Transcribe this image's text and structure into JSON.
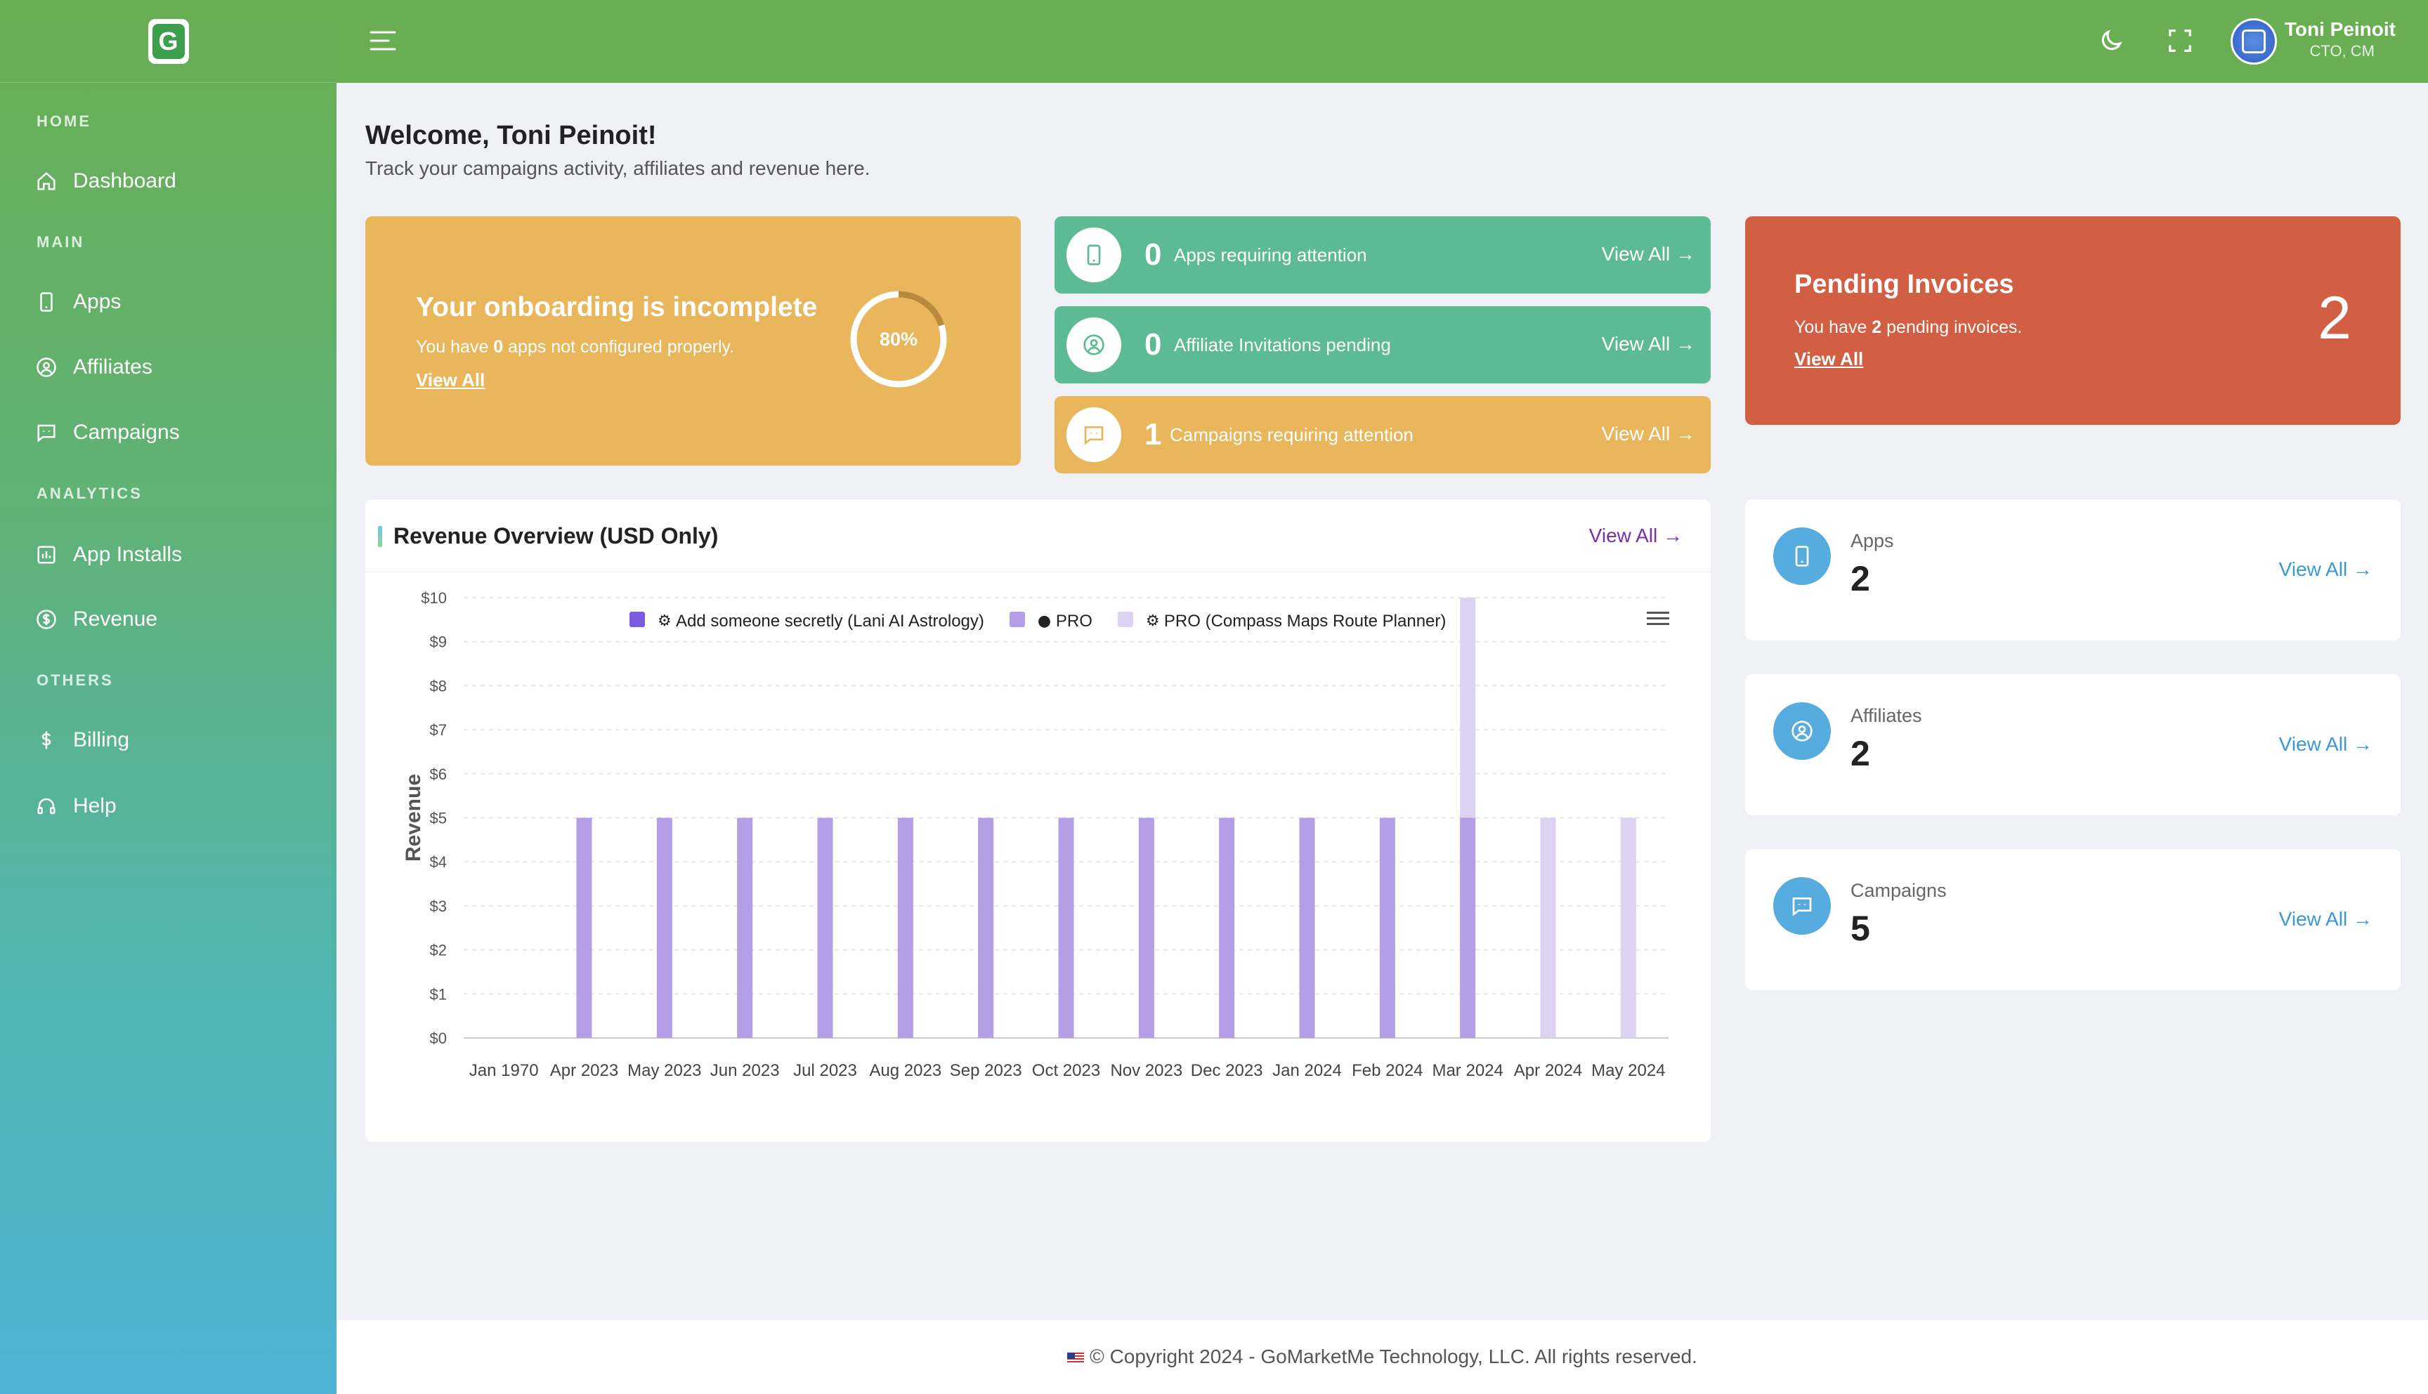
{
  "sidebar": {
    "sections": {
      "home": "HOME",
      "main": "MAIN",
      "analytics": "ANALYTICS",
      "others": "OTHERS"
    },
    "items": [
      {
        "label": "Dashboard",
        "icon": "home-icon"
      },
      {
        "label": "Apps",
        "icon": "phone-icon"
      },
      {
        "label": "Affiliates",
        "icon": "user-circle-icon"
      },
      {
        "label": "Campaigns",
        "icon": "message-icon"
      },
      {
        "label": "App Installs",
        "icon": "bar-chart-icon"
      },
      {
        "label": "Revenue",
        "icon": "dollar-circle-icon"
      },
      {
        "label": "Billing",
        "icon": "dollar-icon"
      },
      {
        "label": "Help",
        "icon": "headset-icon"
      }
    ]
  },
  "topbar": {
    "user_name": "Toni Peinoit",
    "user_role": "CTO, CM"
  },
  "welcome": {
    "title": "Welcome, Toni Peinoit!",
    "subtitle": "Track your campaigns activity, affiliates and revenue here."
  },
  "onboarding": {
    "title": "Your onboarding is incomplete",
    "text_pre": "You have ",
    "count": "0",
    "text_post": " apps not configured properly.",
    "link": "View All",
    "progress_label": "80%",
    "progress": 0.8
  },
  "attention": [
    {
      "count": "0",
      "label": "Apps requiring attention",
      "link": "View All"
    },
    {
      "count": "0",
      "label": "Affiliate Invitations pending",
      "link": "View All"
    },
    {
      "count": "1",
      "label": "Campaigns requiring attention",
      "link": "View All"
    }
  ],
  "invoices": {
    "title": "Pending Invoices",
    "text_pre": "You have ",
    "count": "2",
    "text_post": " pending invoices.",
    "link": "View All",
    "big": "2"
  },
  "revenue": {
    "title": "Revenue Overview (USD Only)",
    "link": "View All"
  },
  "stats": [
    {
      "label": "Apps",
      "value": "2",
      "link": "View All"
    },
    {
      "label": "Affiliates",
      "value": "2",
      "link": "View All"
    },
    {
      "label": "Campaigns",
      "value": "5",
      "link": "View All"
    }
  ],
  "footer": {
    "text": "© Copyright 2024 - GoMarketMe Technology, LLC. All rights reserved."
  },
  "colors": {
    "green": "#69ae52",
    "teal": "#5cbb93",
    "yellow": "#eab65b",
    "red": "#d25f44",
    "blue": "#56abdf",
    "purple": "#7b2ea6"
  },
  "chart_data": {
    "type": "bar",
    "ylabel": "Revenue",
    "ylim": [
      0,
      10
    ],
    "yticks": [
      "$0",
      "$1",
      "$2",
      "$3",
      "$4",
      "$5",
      "$6",
      "$7",
      "$8",
      "$9",
      "$10"
    ],
    "stacked": true,
    "legend_position": "top",
    "categories": [
      "Jan 1970",
      "Apr 2023",
      "May 2023",
      "Jun 2023",
      "Jul 2023",
      "Aug 2023",
      "Sep 2023",
      "Oct 2023",
      "Nov 2023",
      "Dec 2023",
      "Jan 2024",
      "Feb 2024",
      "Mar 2024",
      "Apr 2024",
      "May 2024"
    ],
    "series": [
      {
        "name": "Add someone secretly (Lani AI Astrology)",
        "platform_icon": "android-icon",
        "color": "#7b5be0",
        "values": [
          0,
          0,
          0,
          0,
          0,
          0,
          0,
          0,
          0,
          0,
          0,
          0,
          0,
          0,
          0
        ]
      },
      {
        "name": "PRO",
        "platform_icon": "apple-icon",
        "color": "#b49ee6",
        "values": [
          0,
          5,
          5,
          5,
          5,
          5,
          5,
          5,
          5,
          5,
          5,
          5,
          5,
          0,
          0
        ]
      },
      {
        "name": "PRO (Compass Maps Route Planner)",
        "platform_icon": "android-icon",
        "color": "#dcd2f2",
        "values": [
          0,
          0,
          0,
          0,
          0,
          0,
          0,
          0,
          0,
          0,
          0,
          0,
          5,
          5,
          5
        ]
      }
    ]
  }
}
